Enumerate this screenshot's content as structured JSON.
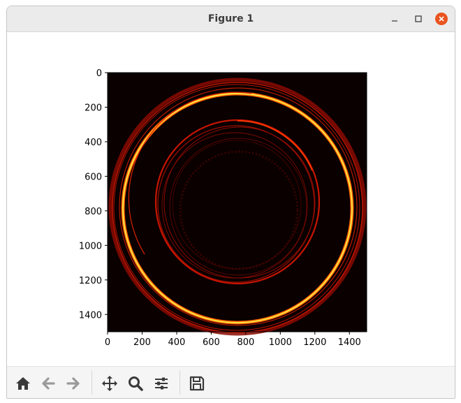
{
  "window": {
    "title": "Figure 1"
  },
  "plot": {
    "colormap": "hot",
    "x_ticks": [
      "0",
      "200",
      "400",
      "600",
      "800",
      "1000",
      "1200",
      "1400"
    ],
    "y_ticks": [
      "0",
      "200",
      "400",
      "600",
      "800",
      "1000",
      "1200",
      "1400"
    ],
    "x_range": [
      0,
      1500
    ],
    "y_range": [
      0,
      1500
    ],
    "y_inverted": true,
    "background_color": "#0a0000"
  },
  "toolbar": {
    "items": [
      "home-icon",
      "back-arrow-icon",
      "forward-arrow-icon",
      "pan-icon",
      "zoom-icon",
      "configure-subplots-icon",
      "save-icon"
    ]
  }
}
